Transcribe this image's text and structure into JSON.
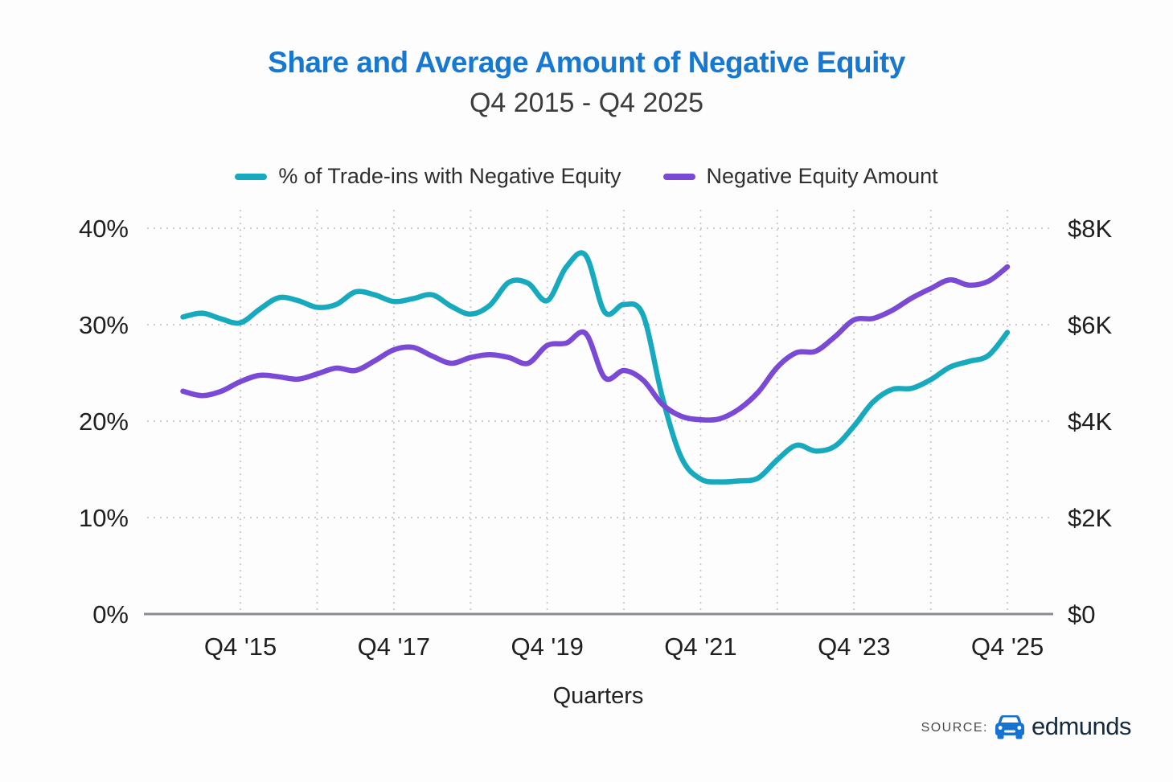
{
  "header": {
    "title": "Share and Average Amount of Negative Equity",
    "subtitle": "Q4 2015 - Q4 2025"
  },
  "legend": {
    "items": [
      {
        "label": "% of Trade-ins with Negative Equity",
        "color": "#17aabf"
      },
      {
        "label": "Negative Equity Amount",
        "color": "#7a49d5"
      }
    ]
  },
  "chart_data": {
    "type": "line",
    "title": "Share and Average Amount of Negative Equity",
    "subtitle": "Q4 2015 - Q4 2025",
    "xlabel": "Quarters",
    "grid": true,
    "legend_position": "top",
    "x_axis": {
      "tick_labels": [
        "Q4 '15",
        "Q4 '17",
        "Q4 '19",
        "Q4 '21",
        "Q4 '23",
        "Q4 '25"
      ],
      "tick_indices": [
        3,
        11,
        19,
        27,
        35,
        43
      ],
      "gridline_indices": [
        3,
        7,
        11,
        15,
        19,
        23,
        27,
        31,
        35,
        39,
        43
      ]
    },
    "y_left": {
      "tick_labels": [
        "40%",
        "30%",
        "20%",
        "10%",
        "0%"
      ],
      "min": 0,
      "max": 40,
      "unit": "%"
    },
    "y_right": {
      "tick_labels": [
        "$8K",
        "$6K",
        "$4K",
        "$2K",
        "$0"
      ],
      "min": 0,
      "max": 8000,
      "unit": "USD"
    },
    "categories": [
      "Q1 '15",
      "Q2 '15",
      "Q3 '15",
      "Q4 '15",
      "Q1 '16",
      "Q2 '16",
      "Q3 '16",
      "Q4 '16",
      "Q1 '17",
      "Q2 '17",
      "Q3 '17",
      "Q4 '17",
      "Q1 '18",
      "Q2 '18",
      "Q3 '18",
      "Q4 '18",
      "Q1 '19",
      "Q2 '19",
      "Q3 '19",
      "Q4 '19",
      "Q1 '20",
      "Q2 '20",
      "Q3 '20",
      "Q4 '20",
      "Q1 '21",
      "Q2 '21",
      "Q3 '21",
      "Q4 '21",
      "Q1 '22",
      "Q2 '22",
      "Q3 '22",
      "Q4 '22",
      "Q1 '23",
      "Q2 '23",
      "Q3 '23",
      "Q4 '23",
      "Q1 '24",
      "Q2 '24",
      "Q3 '24",
      "Q4 '24",
      "Q1 '25",
      "Q2 '25",
      "Q3 '25",
      "Q4 '25"
    ],
    "series": [
      {
        "name": "% of Trade-ins with Negative Equity",
        "axis": "left",
        "unit": "%",
        "color": "#17aabf",
        "values": [
          30.8,
          31.2,
          30.6,
          30.2,
          31.6,
          32.8,
          32.5,
          31.8,
          32.1,
          33.4,
          33.1,
          32.4,
          32.7,
          33.1,
          31.9,
          31.1,
          32.0,
          34.4,
          34.3,
          32.5,
          36.0,
          37.2,
          31.3,
          32.1,
          31.0,
          22.5,
          16.2,
          14.0,
          13.7,
          13.8,
          14.1,
          16.0,
          17.5,
          16.9,
          17.4,
          19.5,
          22.0,
          23.3,
          23.4,
          24.3,
          25.6,
          26.2,
          26.8,
          29.2
        ]
      },
      {
        "name": "Negative Equity Amount",
        "axis": "right",
        "unit": "USD",
        "color": "#7a49d5",
        "values": [
          4620,
          4530,
          4620,
          4820,
          4950,
          4920,
          4870,
          4980,
          5100,
          5050,
          5250,
          5480,
          5530,
          5350,
          5200,
          5320,
          5380,
          5320,
          5200,
          5570,
          5620,
          5820,
          4900,
          5050,
          4850,
          4350,
          4100,
          4030,
          4050,
          4250,
          4600,
          5120,
          5420,
          5450,
          5750,
          6100,
          6130,
          6300,
          6550,
          6750,
          6930,
          6820,
          6900,
          7200
        ]
      }
    ]
  },
  "source": {
    "label": "SOURCE:",
    "brand": "edmunds"
  },
  "colors": {
    "title": "#1778d2",
    "subtitle": "#3d3d3d",
    "axis_text": "#1f1f1f",
    "gridline": "#c7c7d1",
    "axis_line": "#8b8b93",
    "background": "#ffffff",
    "brand_blue": "#1673d2",
    "brand_text": "#13293d"
  }
}
